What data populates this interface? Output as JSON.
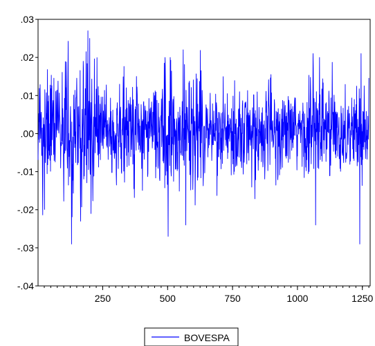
{
  "chart_data": {
    "type": "line",
    "x_range": [
      1,
      1275
    ],
    "xlim": [
      1,
      1280
    ],
    "ylim": [
      -0.04,
      0.03
    ],
    "y_ticks": [
      {
        "value": 0.03,
        "label": ".03"
      },
      {
        "value": 0.02,
        "label": ".02"
      },
      {
        "value": 0.01,
        "label": ".01"
      },
      {
        "value": 0.0,
        "label": ".00"
      },
      {
        "value": -0.01,
        "label": "-.01"
      },
      {
        "value": -0.02,
        "label": "-.02"
      },
      {
        "value": -0.03,
        "label": "-.03"
      },
      {
        "value": -0.04,
        "label": "-.04"
      }
    ],
    "x_ticks": [
      {
        "value": 250,
        "label": "250"
      },
      {
        "value": 500,
        "label": "500"
      },
      {
        "value": 750,
        "label": "750"
      },
      {
        "value": 1000,
        "label": "1000"
      },
      {
        "value": 1250,
        "label": "1250"
      }
    ],
    "x_minor_step": 25,
    "grid": false,
    "legend_position": "bottom-center",
    "series": [
      {
        "name": "BOVESPA",
        "color": "#0000ff",
        "volatility_regimes": [
          {
            "from": 1,
            "to": 100,
            "sd": 0.0072
          },
          {
            "from": 100,
            "to": 230,
            "sd": 0.0098
          },
          {
            "from": 230,
            "to": 370,
            "sd": 0.0065
          },
          {
            "from": 370,
            "to": 480,
            "sd": 0.0058
          },
          {
            "from": 480,
            "to": 630,
            "sd": 0.008
          },
          {
            "from": 630,
            "to": 760,
            "sd": 0.0055
          },
          {
            "from": 760,
            "to": 900,
            "sd": 0.006
          },
          {
            "from": 900,
            "to": 1040,
            "sd": 0.0052
          },
          {
            "from": 1040,
            "to": 1130,
            "sd": 0.0078
          },
          {
            "from": 1130,
            "to": 1275,
            "sd": 0.0055
          }
        ],
        "notable_points": [
          {
            "x": 130,
            "y": -0.029
          },
          {
            "x": 165,
            "y": -0.023
          },
          {
            "x": 175,
            "y": 0.019
          },
          {
            "x": 193,
            "y": 0.027
          },
          {
            "x": 200,
            "y": 0.025
          },
          {
            "x": 205,
            "y": -0.021
          },
          {
            "x": 490,
            "y": 0.02
          },
          {
            "x": 502,
            "y": -0.027
          },
          {
            "x": 510,
            "y": 0.02
          },
          {
            "x": 560,
            "y": 0.022
          },
          {
            "x": 570,
            "y": -0.024
          },
          {
            "x": 1060,
            "y": 0.021
          },
          {
            "x": 1070,
            "y": -0.024
          },
          {
            "x": 1085,
            "y": 0.02
          },
          {
            "x": 1240,
            "y": -0.029
          },
          {
            "x": 1245,
            "y": 0.021
          }
        ]
      }
    ]
  }
}
